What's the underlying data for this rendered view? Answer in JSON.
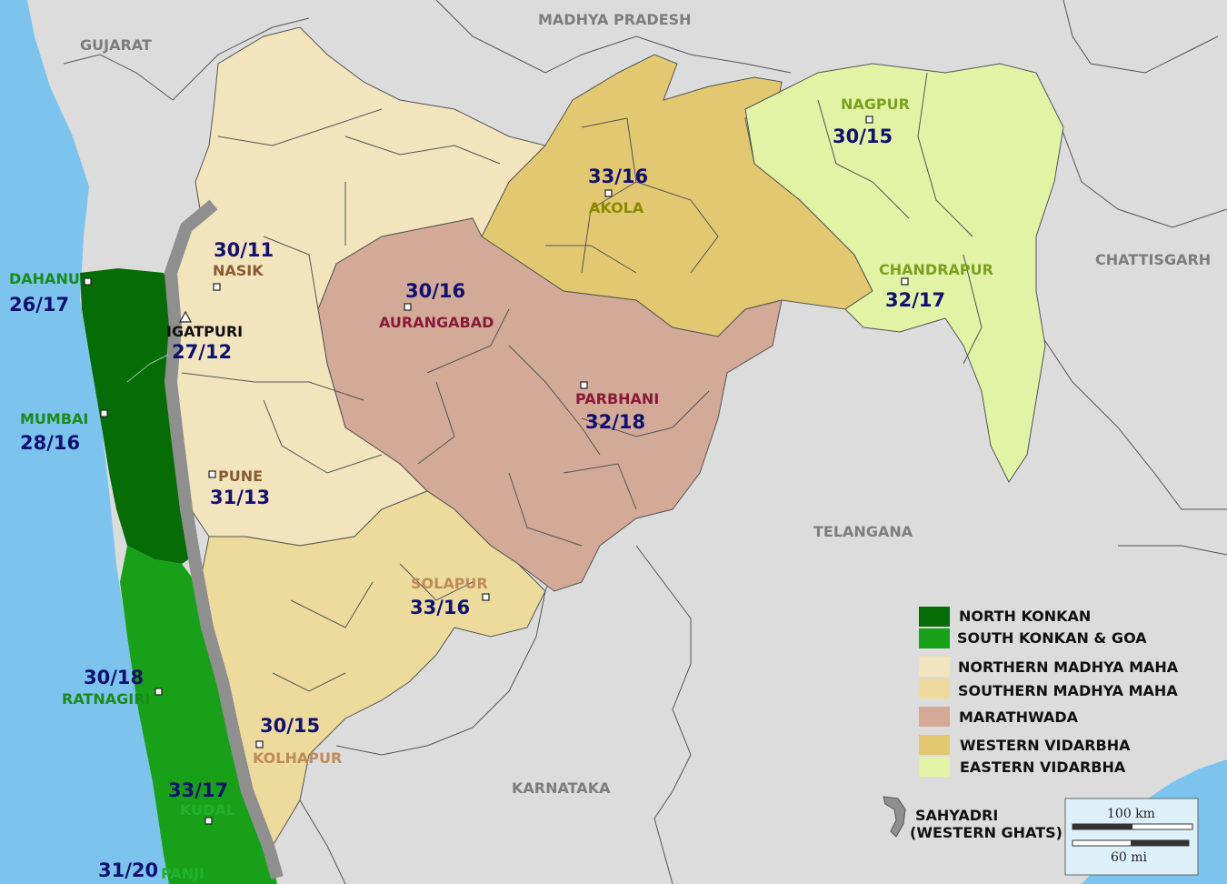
{
  "states": {
    "gujarat": "GUJARAT",
    "madhya_pradesh": "MADHYA PRADESH",
    "chattisgarh": "CHATTISGARH",
    "telangana": "TELANGANA",
    "karnataka": "KARNATAKA"
  },
  "stations": {
    "dahanu": {
      "name": "DAHANU",
      "temp": "26/17"
    },
    "igatpuri": {
      "name": "IGATPURI",
      "temp": "27/12"
    },
    "mumbai": {
      "name": "MUMBAI",
      "temp": "28/16"
    },
    "ratnagiri": {
      "name": "RATNAGIRI",
      "temp": "30/18"
    },
    "kudal": {
      "name": "KUDAL",
      "temp": "33/17"
    },
    "panji": {
      "name": "PANJI",
      "temp": "31/20"
    },
    "nasik": {
      "name": "NASIK",
      "temp": "30/11"
    },
    "pune": {
      "name": "PUNE",
      "temp": "31/13"
    },
    "kolhapur": {
      "name": "KOLHAPUR",
      "temp": "30/15"
    },
    "solapur": {
      "name": "SOLAPUR",
      "temp": "33/16"
    },
    "aurangabad": {
      "name": "AURANGABAD",
      "temp": "30/16"
    },
    "parbhani": {
      "name": "PARBHANI",
      "temp": "32/18"
    },
    "akola": {
      "name": "AKOLA",
      "temp": "33/16"
    },
    "nagpur": {
      "name": "NAGPUR",
      "temp": "30/15"
    },
    "chandrapur": {
      "name": "CHANDRAPUR",
      "temp": "32/17"
    }
  },
  "legend": {
    "north_konkan": "NORTH KONKAN",
    "south_konkan": "SOUTH KONKAN & GOA",
    "northern_madhya": "NORTHERN MADHYA MAHA",
    "southern_madhya": "SOUTHERN MADHYA MAHA",
    "marathwada": "MARATHWADA",
    "western_vidarbha": "WESTERN VIDARBHA",
    "eastern_vidarbha": "EASTERN VIDARBHA",
    "sahyadri_line1": "SAHYADRI",
    "sahyadri_line2": "(WESTERN GHATS)"
  },
  "scale": {
    "km": "100 km",
    "mi": "60 mi"
  },
  "colors": {
    "sea": "#7cc4ee",
    "neighbour": "#dcdcdc",
    "north_konkan": "#066c06",
    "south_konkan": "#18a018",
    "northern_madhya": "#f2e4bc",
    "southern_madhya": "#ecdb9c",
    "marathwada": "#d3a997",
    "western_vidarbha": "#e2c870",
    "eastern_vidarbha": "#e3f3a6",
    "ghats": "#8f8f8f",
    "temp_text": "#101070"
  }
}
